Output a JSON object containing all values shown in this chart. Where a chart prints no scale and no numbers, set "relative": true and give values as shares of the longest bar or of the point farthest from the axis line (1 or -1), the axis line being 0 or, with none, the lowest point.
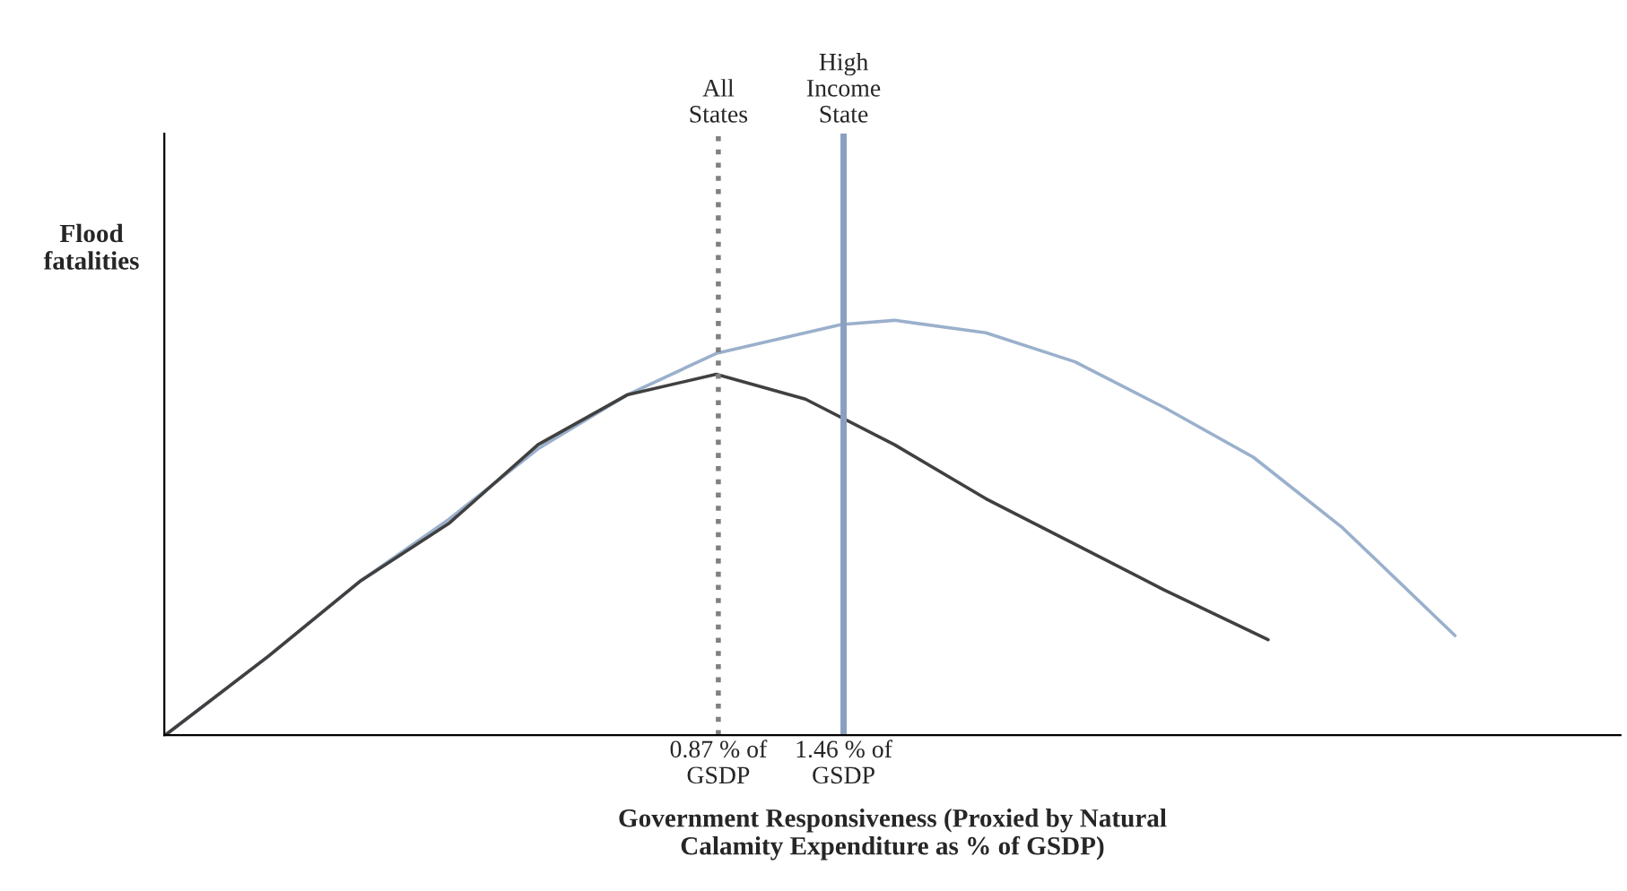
{
  "chart_data": {
    "type": "line",
    "relative": true,
    "xlabel": "Government Responsiveness (Proxied by Natural\nCalamity Expenditure as % of GSDP)",
    "ylabel": "Flood\nfatalities",
    "xlim": [
      -1.74,
      5.12
    ],
    "xticks": [
      {
        "value": 0.87,
        "label": "0.87 % of\nGSDP"
      },
      {
        "value": 1.46,
        "label": "1.46 % of\nGSDP"
      }
    ],
    "series": [
      {
        "color": "#9ab0cc",
        "x": [
          -1.735,
          -1.25,
          -0.82,
          -0.4,
          0.02,
          0.44,
          0.86,
          1.45,
          1.7,
          2.13,
          2.55,
          2.97,
          3.39,
          3.81,
          4.34
        ],
        "values": [
          0,
          0.19,
          0.37,
          0.52,
          0.69,
          0.82,
          0.92,
          0.99,
          1.0,
          0.97,
          0.9,
          0.79,
          0.67,
          0.5,
          0.24
        ]
      },
      {
        "color": "#404040",
        "x": [
          -1.735,
          -1.25,
          -0.82,
          -0.4,
          0.02,
          0.44,
          0.86,
          1.28,
          1.7,
          2.13,
          2.55,
          2.97,
          3.46
        ],
        "values": [
          0,
          0.19,
          0.37,
          0.51,
          0.7,
          0.82,
          0.87,
          0.81,
          0.7,
          0.57,
          0.46,
          0.35,
          0.23
        ]
      }
    ],
    "ref_lines": [
      {
        "axis": "x",
        "value": 0.87,
        "label": "All\nStates",
        "color": "#808080",
        "line_style": "dotted"
      },
      {
        "axis": "x",
        "value": 1.46,
        "label": "High\nIncome\nState",
        "color": "#8aa0c0",
        "line_style": "solid"
      }
    ],
    "grid": false,
    "legend": false,
    "marker": "none",
    "line_style": "solid"
  }
}
